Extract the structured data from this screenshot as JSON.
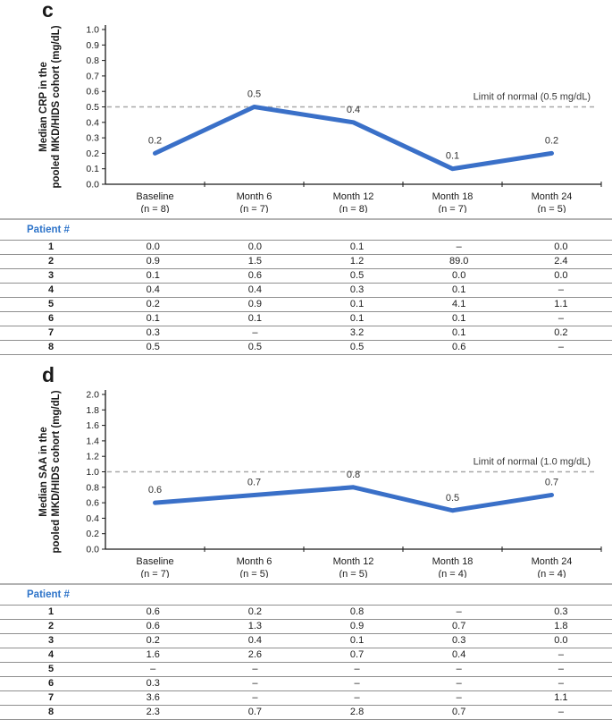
{
  "colors": {
    "line_blue": "#3a70c8",
    "patient_header_blue": "#2e74c9",
    "dashed_gray": "#a8a8a8",
    "axis_black": "#1a1a1a",
    "table_border_gray": "#8f8f8f"
  },
  "chart_data": [
    {
      "type": "line",
      "panel_label": "c",
      "title": "",
      "xlabel": "",
      "ylabel": "Median CRP in the pooled MKD/HIDS cohort (mg/dL)",
      "ylabel_lines": [
        "Median CRP in the",
        "pooled MKD/HIDS cohort (mg/dL)"
      ],
      "categories": [
        "Baseline",
        "Month 6",
        "Month 12",
        "Month 18",
        "Month 24"
      ],
      "category_n": [
        "(n = 8)",
        "(n = 7)",
        "(n = 8)",
        "(n = 7)",
        "(n = 5)"
      ],
      "values": [
        0.2,
        0.5,
        0.4,
        0.1,
        0.2
      ],
      "point_labels": [
        "0.2",
        "0.5",
        "0.4",
        "0.1",
        "0.2"
      ],
      "ylim": [
        0.0,
        1.0
      ],
      "ytick_step": 0.1,
      "grid": false,
      "legend": "none",
      "limit_line": {
        "value": 0.5,
        "label": "Limit of normal (0.5 mg/dL)"
      },
      "line_color": "#3a70c8",
      "table": {
        "header": "Patient #",
        "rows": [
          {
            "patient": "1",
            "values": [
              "0.0",
              "0.0",
              "0.1",
              "–",
              "0.0"
            ]
          },
          {
            "patient": "2",
            "values": [
              "0.9",
              "1.5",
              "1.2",
              "89.0",
              "2.4"
            ]
          },
          {
            "patient": "3",
            "values": [
              "0.1",
              "0.6",
              "0.5",
              "0.0",
              "0.0"
            ]
          },
          {
            "patient": "4",
            "values": [
              "0.4",
              "0.4",
              "0.3",
              "0.1",
              "–"
            ]
          },
          {
            "patient": "5",
            "values": [
              "0.2",
              "0.9",
              "0.1",
              "4.1",
              "1.1"
            ]
          },
          {
            "patient": "6",
            "values": [
              "0.1",
              "0.1",
              "0.1",
              "0.1",
              "–"
            ]
          },
          {
            "patient": "7",
            "values": [
              "0.3",
              "–",
              "3.2",
              "0.1",
              "0.2"
            ]
          },
          {
            "patient": "8",
            "values": [
              "0.5",
              "0.5",
              "0.5",
              "0.6",
              "–"
            ]
          }
        ]
      }
    },
    {
      "type": "line",
      "panel_label": "d",
      "title": "",
      "xlabel": "",
      "ylabel": "Median SAA in the pooled MKD/HIDS cohort (mg/dL)",
      "ylabel_lines": [
        "Median SAA in the",
        "pooled MKD/HIDS cohort (mg/dL)"
      ],
      "categories": [
        "Baseline",
        "Month 6",
        "Month 12",
        "Month 18",
        "Month 24"
      ],
      "category_n": [
        "(n = 7)",
        "(n = 5)",
        "(n = 5)",
        "(n = 4)",
        "(n = 4)"
      ],
      "values": [
        0.6,
        0.7,
        0.8,
        0.5,
        0.7
      ],
      "point_labels": [
        "0.6",
        "0.7",
        "0.8",
        "0.5",
        "0.7"
      ],
      "ylim": [
        0.0,
        2.0
      ],
      "ytick_step": 0.2,
      "grid": false,
      "legend": "none",
      "limit_line": {
        "value": 1.0,
        "label": "Limit of normal (1.0 mg/dL)"
      },
      "line_color": "#3a70c8",
      "table": {
        "header": "Patient #",
        "rows": [
          {
            "patient": "1",
            "values": [
              "0.6",
              "0.2",
              "0.8",
              "–",
              "0.3"
            ]
          },
          {
            "patient": "2",
            "values": [
              "0.6",
              "1.3",
              "0.9",
              "0.7",
              "1.8"
            ]
          },
          {
            "patient": "3",
            "values": [
              "0.2",
              "0.4",
              "0.1",
              "0.3",
              "0.0"
            ]
          },
          {
            "patient": "4",
            "values": [
              "1.6",
              "2.6",
              "0.7",
              "0.4",
              "–"
            ]
          },
          {
            "patient": "5",
            "values": [
              "–",
              "–",
              "–",
              "–",
              "–"
            ]
          },
          {
            "patient": "6",
            "values": [
              "0.3",
              "–",
              "–",
              "–",
              "–"
            ]
          },
          {
            "patient": "7",
            "values": [
              "3.6",
              "–",
              "–",
              "–",
              "1.1"
            ]
          },
          {
            "patient": "8",
            "values": [
              "2.3",
              "0.7",
              "2.8",
              "0.7",
              "–"
            ]
          }
        ]
      }
    }
  ]
}
